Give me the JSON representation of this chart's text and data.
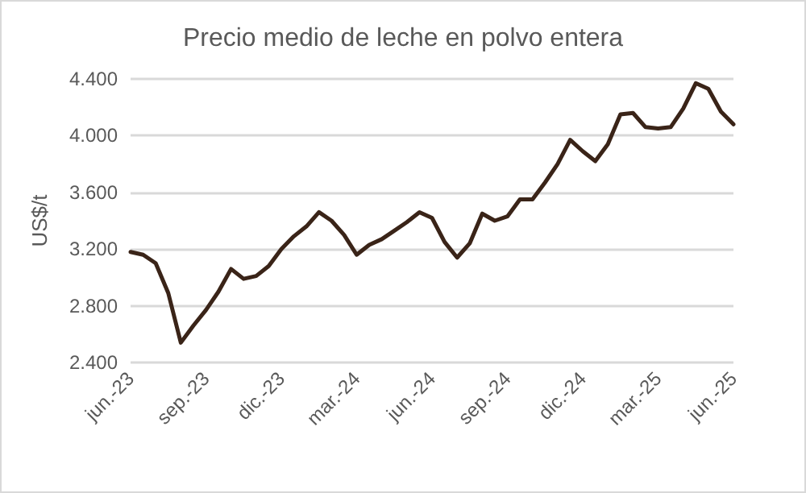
{
  "chart_data": {
    "type": "line",
    "title": "Precio medio de leche en polvo entera",
    "ylabel": "US$/t",
    "categories": [
      "jun.-23",
      null,
      null,
      null,
      null,
      null,
      "sep.-23",
      null,
      null,
      null,
      null,
      null,
      "dic.-23",
      null,
      null,
      null,
      null,
      null,
      "mar.-24",
      null,
      null,
      null,
      null,
      null,
      "jun.-24",
      null,
      null,
      null,
      null,
      null,
      "sep.-24",
      null,
      null,
      null,
      null,
      null,
      "dic.-24",
      null,
      null,
      null,
      null,
      null,
      "mar.-25",
      null,
      null,
      null,
      null,
      null,
      "jun.-25"
    ],
    "series": [
      {
        "color": "#3a2418",
        "values": [
          3180,
          3160,
          3100,
          2890,
          2540,
          2660,
          2770,
          2900,
          3060,
          2990,
          3010,
          3080,
          3200,
          3290,
          3360,
          3460,
          3400,
          3300,
          3160,
          3230,
          3270,
          3330,
          3390,
          3460,
          3420,
          3250,
          3140,
          3240,
          3450,
          3400,
          3430,
          3550,
          3550,
          3670,
          3800,
          3970,
          3890,
          3820,
          3940,
          4150,
          4160,
          4060,
          4050,
          4060,
          4190,
          4370,
          4330,
          4170,
          4080
        ]
      }
    ],
    "ylim": [
      2400,
      4400
    ],
    "yticks": [
      {
        "value": 2400,
        "label": "2.400"
      },
      {
        "value": 2800,
        "label": "2.800"
      },
      {
        "value": 3200,
        "label": "3.200"
      },
      {
        "value": 3600,
        "label": "3.600"
      },
      {
        "value": 4000,
        "label": "4.000"
      },
      {
        "value": 4400,
        "label": "4.400"
      }
    ],
    "grid": "y",
    "marker": "none",
    "line_style": "solid"
  }
}
